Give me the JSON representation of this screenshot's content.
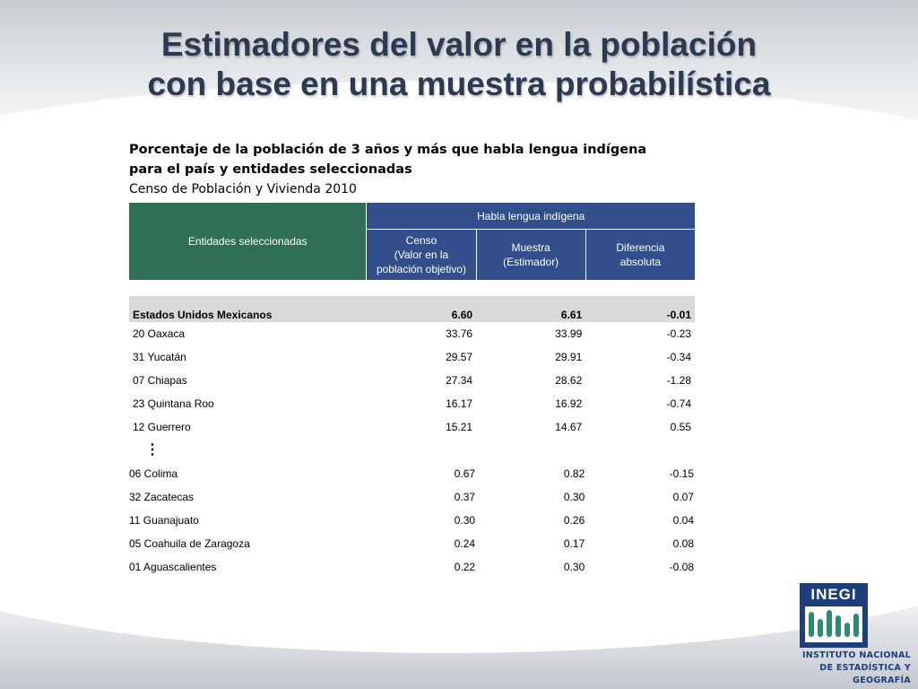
{
  "slide": {
    "title_line1": "Estimadores del valor en la población",
    "title_line2": "con base en una muestra probabilística"
  },
  "caption": {
    "line1": "Porcentaje de la población de 3 años y más que habla lengua indígena",
    "line2": "para el país y entidades seleccionadas",
    "line3": "Censo de Población y Vivienda 2010"
  },
  "table": {
    "header_entidades": "Entidades seleccionadas",
    "header_group": "Habla lengua indígena",
    "header_censo": [
      "Censo",
      "(Valor en la",
      "población objetivo)"
    ],
    "header_muestra": [
      "Muestra",
      "(Estimador)"
    ],
    "header_diferencia": [
      "Diferencia",
      "absoluta"
    ],
    "national": {
      "name": "Estados Unidos Mexicanos",
      "censo": "6.60",
      "muestra": "6.61",
      "diferencia": "-0.01"
    },
    "top_rows": [
      {
        "name": "20 Oaxaca",
        "censo": "33.76",
        "muestra": "33.99",
        "diferencia": "-0.23"
      },
      {
        "name": "31 Yucatán",
        "censo": "29.57",
        "muestra": "29.91",
        "diferencia": "-0.34"
      },
      {
        "name": "07 Chiapas",
        "censo": "27.34",
        "muestra": "28.62",
        "diferencia": "-1.28"
      },
      {
        "name": "23 Quintana Roo",
        "censo": "16.17",
        "muestra": "16.92",
        "diferencia": "-0.74"
      },
      {
        "name": "12 Guerrero",
        "censo": "15.21",
        "muestra": "14.67",
        "diferencia": "0.55"
      }
    ],
    "ellipsis": "⋮",
    "bottom_rows": [
      {
        "name": "06 Colima",
        "censo": "0.67",
        "muestra": "0.82",
        "diferencia": "-0.15"
      },
      {
        "name": "32 Zacatecas",
        "censo": "0.37",
        "muestra": "0.30",
        "diferencia": "0.07"
      },
      {
        "name": "11 Guanajuato",
        "censo": "0.30",
        "muestra": "0.26",
        "diferencia": "0.04"
      },
      {
        "name": "05 Coahuila de Zaragoza",
        "censo": "0.24",
        "muestra": "0.17",
        "diferencia": "0.08"
      },
      {
        "name": "01 Aguascalientes",
        "censo": "0.22",
        "muestra": "0.30",
        "diferencia": "-0.08"
      }
    ]
  },
  "logo": {
    "word": "INEGI",
    "line1": "INSTITUTO NACIONAL",
    "line2": "DE ESTADÍSTICA Y GEOGRAFÍA"
  },
  "colors": {
    "header_green": "#2f6f55",
    "header_blue": "#324f8c",
    "title": "#2b3a52",
    "national_row": "#d9d9d9"
  }
}
